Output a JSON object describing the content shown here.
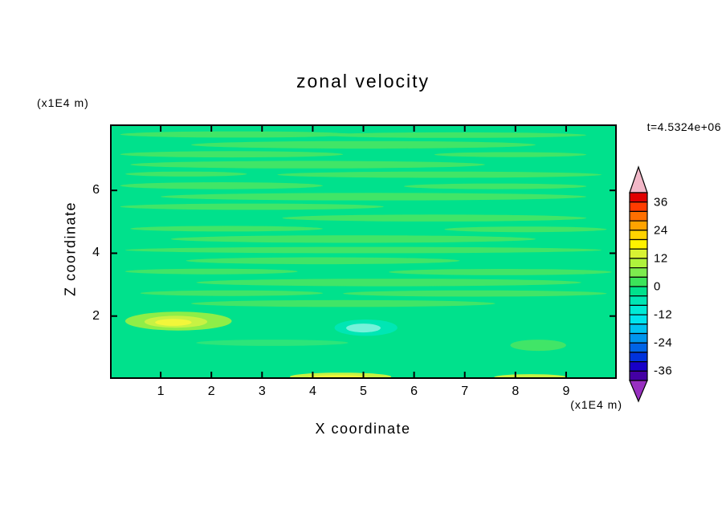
{
  "chart_data": {
    "type": "heatmap",
    "title": "zonal velocity",
    "xlabel": "X coordinate",
    "ylabel": "Z coordinate",
    "x_units_label": "(x1E4 m)",
    "y_units_label": "(x1E4 m)",
    "timestamp": "t=4.5324e+06",
    "xlim": [
      0,
      10
    ],
    "ylim": [
      0,
      8.1
    ],
    "x_ticks": [
      1,
      2,
      3,
      4,
      5,
      6,
      7,
      8,
      9
    ],
    "y_ticks": [
      2,
      4,
      6
    ],
    "grid": false,
    "legend_position": "right-colorbar",
    "colorbar": {
      "labels": [
        "36",
        "24",
        "12",
        "0",
        "-12",
        "-24",
        "-36"
      ],
      "value_step_per_cell": 4,
      "range": [
        -40,
        40
      ],
      "top_arrow_color": "#f2b8c8",
      "bottom_arrow_color": "#9830c0",
      "cells_top_to_bottom": [
        "#e00000",
        "#ff3c00",
        "#ff6f00",
        "#ffa300",
        "#ffd300",
        "#fff200",
        "#d8f233",
        "#aff23c",
        "#7deb4e",
        "#3ce45a",
        "#00e18c",
        "#00e6b4",
        "#00ead6",
        "#00e4ee",
        "#00c2f2",
        "#0096ee",
        "#0064e6",
        "#0032dc",
        "#1800c8",
        "#4400a4"
      ]
    },
    "field": {
      "description": "mostly near-zero zonal velocity: spring-green background with lighter green streaky bands, yellow maxima near bottom-left and bottom edge, cyan minimum near x=5 z=1.6",
      "base_color": "#00e18c",
      "features": [
        {
          "x": 2.5,
          "z": 7.78,
          "rx": 2.3,
          "rz": 0.1,
          "c": "#41e567"
        },
        {
          "x": 6.8,
          "z": 7.76,
          "rx": 2.6,
          "rz": 0.09,
          "c": "#41e567"
        },
        {
          "x": 5.0,
          "z": 7.45,
          "rx": 3.4,
          "rz": 0.12,
          "c": "#41e567"
        },
        {
          "x": 2.4,
          "z": 7.15,
          "rx": 2.2,
          "rz": 0.1,
          "c": "#41e567"
        },
        {
          "x": 7.9,
          "z": 7.14,
          "rx": 1.5,
          "rz": 0.08,
          "c": "#41e567"
        },
        {
          "x": 3.9,
          "z": 6.82,
          "rx": 3.5,
          "rz": 0.12,
          "c": "#41e567"
        },
        {
          "x": 6.5,
          "z": 6.5,
          "rx": 3.2,
          "rz": 0.1,
          "c": "#41e567"
        },
        {
          "x": 1.5,
          "z": 6.52,
          "rx": 1.2,
          "rz": 0.08,
          "c": "#41e567"
        },
        {
          "x": 2.2,
          "z": 6.15,
          "rx": 2.0,
          "rz": 0.11,
          "c": "#41e567"
        },
        {
          "x": 7.6,
          "z": 6.13,
          "rx": 1.8,
          "rz": 0.09,
          "c": "#41e567"
        },
        {
          "x": 5.2,
          "z": 5.8,
          "rx": 4.2,
          "rz": 0.12,
          "c": "#41e567"
        },
        {
          "x": 2.8,
          "z": 5.48,
          "rx": 2.6,
          "rz": 0.1,
          "c": "#41e567"
        },
        {
          "x": 6.4,
          "z": 5.12,
          "rx": 3.0,
          "rz": 0.11,
          "c": "#41e567"
        },
        {
          "x": 2.3,
          "z": 4.78,
          "rx": 1.9,
          "rz": 0.09,
          "c": "#41e567"
        },
        {
          "x": 8.2,
          "z": 4.76,
          "rx": 1.6,
          "rz": 0.09,
          "c": "#41e567"
        },
        {
          "x": 4.8,
          "z": 4.45,
          "rx": 3.6,
          "rz": 0.12,
          "c": "#41e567"
        },
        {
          "x": 5.0,
          "z": 4.1,
          "rx": 4.7,
          "rz": 0.1,
          "c": "#41e567"
        },
        {
          "x": 4.2,
          "z": 3.76,
          "rx": 2.7,
          "rz": 0.11,
          "c": "#41e567"
        },
        {
          "x": 2.0,
          "z": 3.42,
          "rx": 1.7,
          "rz": 0.09,
          "c": "#41e567"
        },
        {
          "x": 7.7,
          "z": 3.4,
          "rx": 2.2,
          "rz": 0.1,
          "c": "#41e567"
        },
        {
          "x": 5.5,
          "z": 3.07,
          "rx": 3.8,
          "rz": 0.12,
          "c": "#41e567"
        },
        {
          "x": 2.4,
          "z": 2.73,
          "rx": 1.8,
          "rz": 0.09,
          "c": "#41e567"
        },
        {
          "x": 7.2,
          "z": 2.72,
          "rx": 2.6,
          "rz": 0.1,
          "c": "#41e567"
        },
        {
          "x": 4.6,
          "z": 2.4,
          "rx": 3.0,
          "rz": 0.11,
          "c": "#41e567"
        },
        {
          "x": 3.2,
          "z": 1.15,
          "rx": 1.5,
          "rz": 0.1,
          "c": "#2ce57a"
        },
        {
          "x": 8.45,
          "z": 1.07,
          "rx": 0.55,
          "rz": 0.18,
          "c": "#41e567"
        },
        {
          "x": 1.35,
          "z": 1.84,
          "rx": 1.05,
          "rz": 0.3,
          "c": "#8eee48"
        },
        {
          "x": 1.3,
          "z": 1.82,
          "rx": 0.62,
          "rz": 0.19,
          "c": "#c8f243"
        },
        {
          "x": 1.25,
          "z": 1.8,
          "rx": 0.36,
          "rz": 0.11,
          "c": "#f2f63a"
        },
        {
          "x": 5.05,
          "z": 1.63,
          "rx": 0.62,
          "rz": 0.26,
          "c": "#00e6b4"
        },
        {
          "x": 5.0,
          "z": 1.62,
          "rx": 0.34,
          "rz": 0.14,
          "c": "#74f2da"
        },
        {
          "x": 4.55,
          "z": 0.07,
          "rx": 1.0,
          "rz": 0.13,
          "c": "#c8f243"
        },
        {
          "x": 4.5,
          "z": 0.04,
          "rx": 0.6,
          "rz": 0.08,
          "c": "#f2f63a"
        },
        {
          "x": 8.3,
          "z": 0.05,
          "rx": 0.72,
          "rz": 0.1,
          "c": "#c8f243"
        }
      ]
    }
  }
}
